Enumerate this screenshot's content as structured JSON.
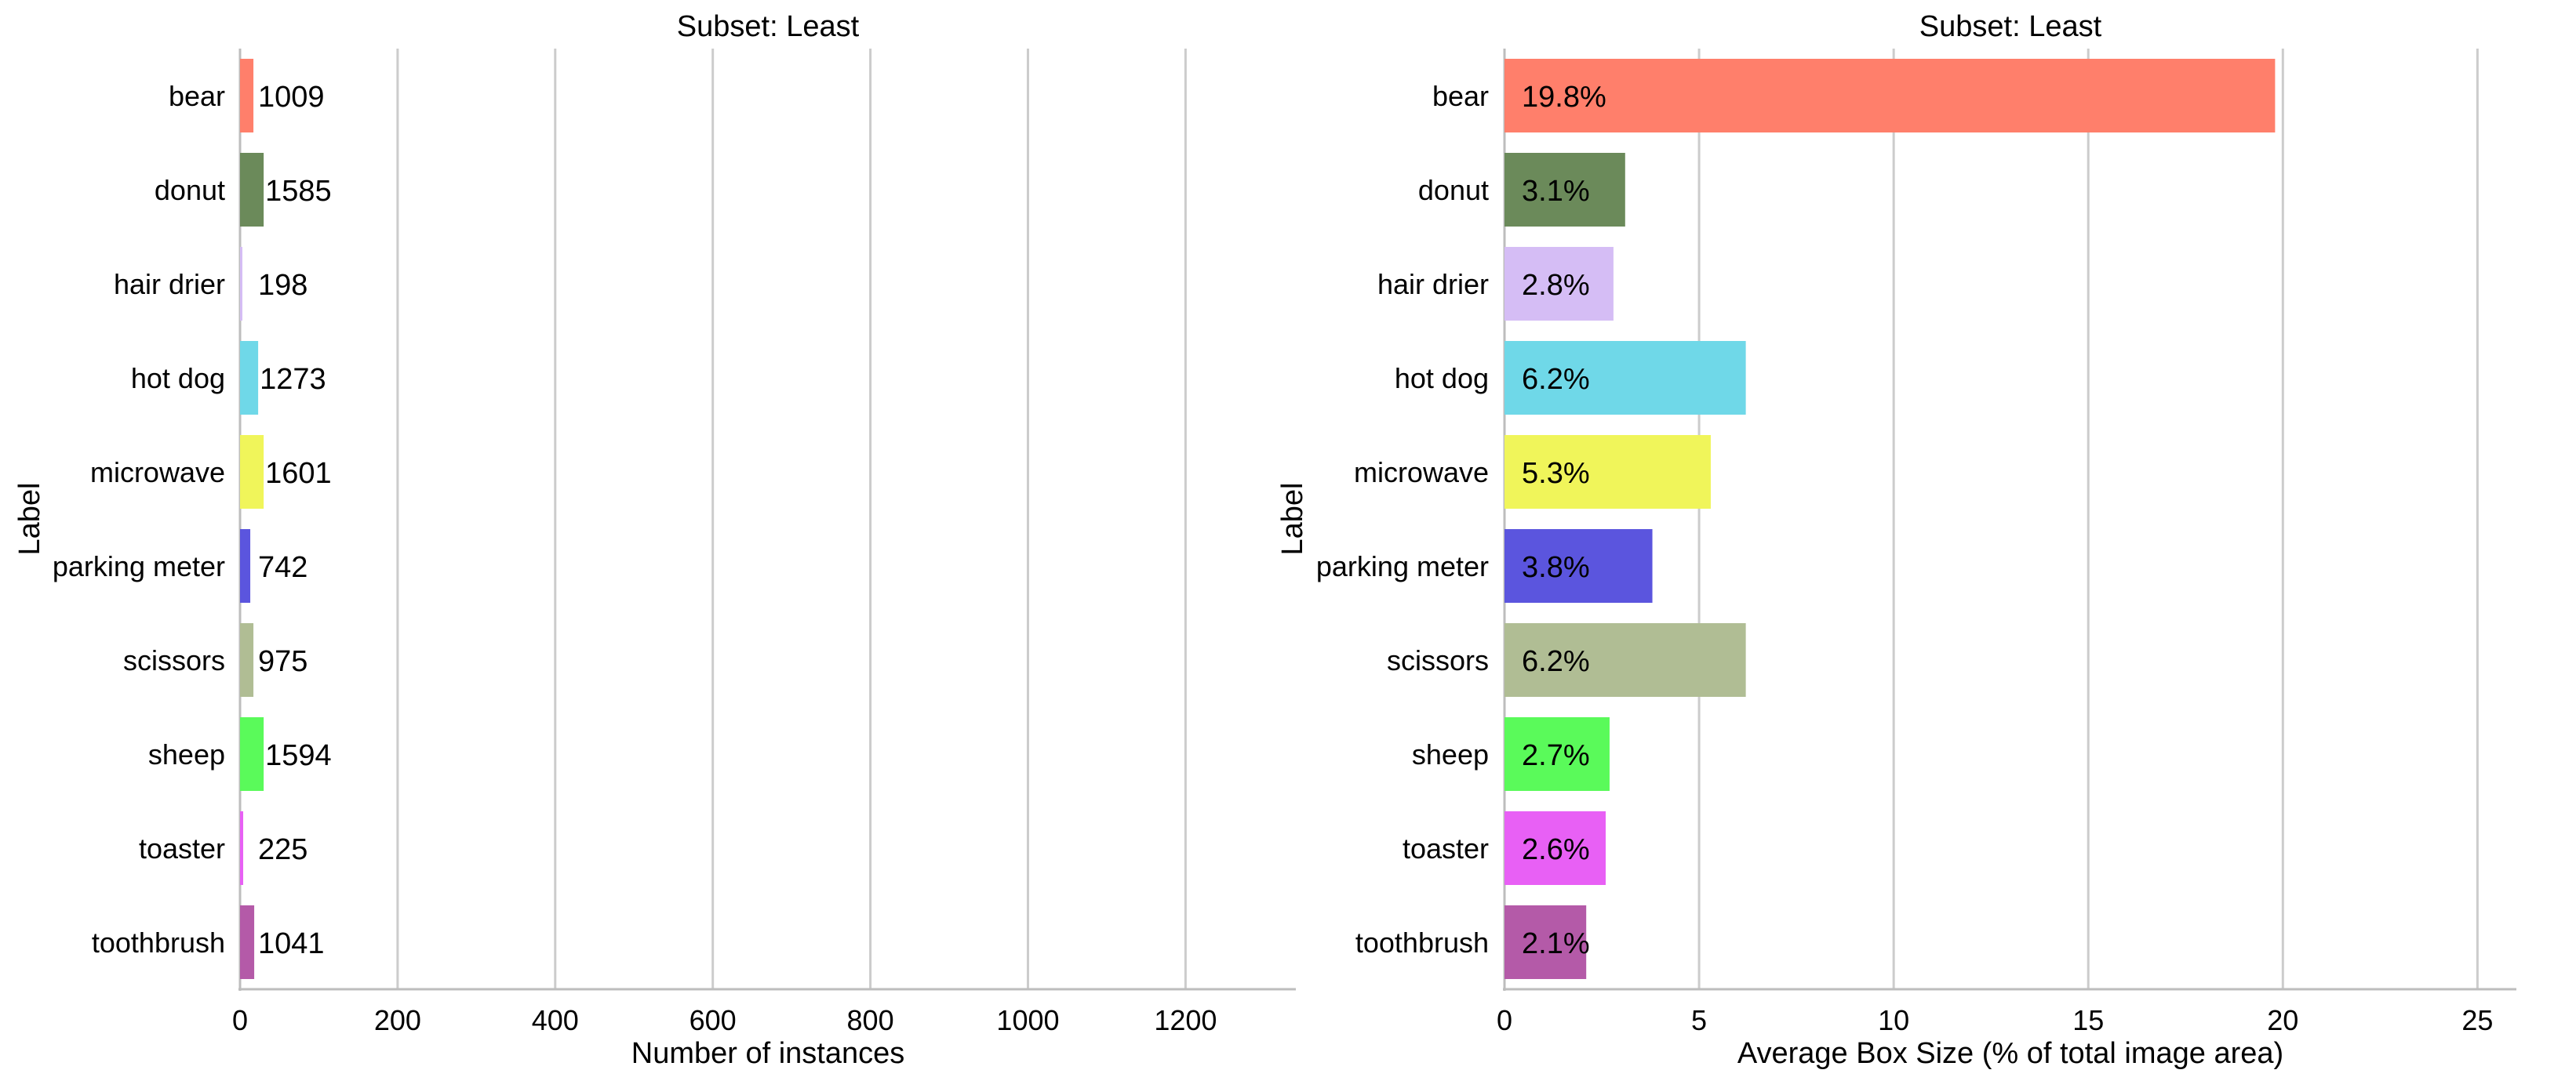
{
  "chart_data": [
    {
      "type": "bar",
      "orientation": "horizontal",
      "title": "Subset: Least",
      "xlabel": "Number of instances",
      "ylabel": "Label",
      "xlim": [
        0,
        1340
      ],
      "xticks": [
        0,
        200,
        400,
        600,
        800,
        1000,
        1200
      ],
      "grid": "vertical",
      "categories": [
        "bear",
        "donut",
        "hair drier",
        "hot dog",
        "microwave",
        "parking meter",
        "scissors",
        "sheep",
        "toaster",
        "toothbrush"
      ],
      "values": [
        1009,
        1585,
        198,
        1273,
        1601,
        742,
        975,
        1594,
        225,
        1041
      ],
      "bar_lengths": [
        17,
        30,
        3,
        23,
        30,
        13,
        17,
        30,
        4,
        18
      ],
      "data_labels": [
        "1009",
        "1585",
        "198",
        "1273",
        "1601",
        "742",
        "975",
        "1594",
        "225",
        "1041"
      ],
      "label_position": "outside-end",
      "colors": [
        "#ff7f6b",
        "#6b8a5a",
        "#d5bdf5",
        "#6fd8e8",
        "#f0f55a",
        "#5b55de",
        "#b0bd94",
        "#5afa5a",
        "#e860f5",
        "#b45aa8"
      ]
    },
    {
      "type": "bar",
      "orientation": "horizontal",
      "title": "Subset: Least",
      "xlabel": "Average Box Size (% of total image area)",
      "ylabel": "Label",
      "xlim": [
        0,
        26
      ],
      "xticks": [
        0,
        5,
        10,
        15,
        20,
        25
      ],
      "grid": "vertical",
      "categories": [
        "bear",
        "donut",
        "hair drier",
        "hot dog",
        "microwave",
        "parking meter",
        "scissors",
        "sheep",
        "toaster",
        "toothbrush"
      ],
      "values": [
        19.8,
        3.1,
        2.8,
        6.2,
        5.3,
        3.8,
        6.2,
        2.7,
        2.6,
        2.1
      ],
      "bar_lengths": [
        19.8,
        3.1,
        2.8,
        6.2,
        5.3,
        3.8,
        6.2,
        2.7,
        2.6,
        2.1
      ],
      "data_labels": [
        "19.8%",
        "3.1%",
        "2.8%",
        "6.2%",
        "5.3%",
        "3.8%",
        "6.2%",
        "2.7%",
        "2.6%",
        "2.1%"
      ],
      "label_position": "inside-start",
      "colors": [
        "#ff7f6b",
        "#6b8a5a",
        "#d5bdf5",
        "#6fd8e8",
        "#f0f55a",
        "#5b55de",
        "#b0bd94",
        "#5afa5a",
        "#e860f5",
        "#b45aa8"
      ]
    }
  ]
}
